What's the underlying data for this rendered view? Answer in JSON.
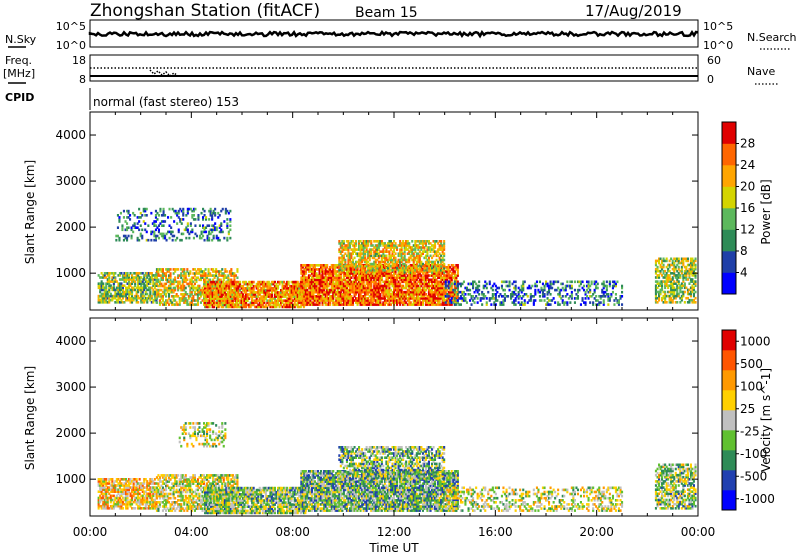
{
  "header": {
    "station": "Zhongshan Station (fitACF)",
    "beam": "Beam 15",
    "date": "17/Aug/2019"
  },
  "top_panels": {
    "nsky_label": "N.Sky",
    "nsky_ticks": [
      "10^5",
      "10^0"
    ],
    "nsearch_label": "N.Search",
    "nsearch_ticks": [
      "10^5",
      "10^0"
    ],
    "freq_label": "Freq.",
    "freq_unit": "[MHz]",
    "freq_ticks": [
      "18",
      "8"
    ],
    "nave_label": "Nave",
    "nave_ticks": [
      "60",
      "0"
    ],
    "cpid_label": "CPID",
    "cpid_text": "normal (fast stereo) 153"
  },
  "colors": {
    "power_scale": [
      "#0000ff",
      "#1f3fa8",
      "#2e8b57",
      "#5cb85c",
      "#d4d400",
      "#ffa500",
      "#ff6600",
      "#e00000"
    ],
    "velocity_scale": [
      "#0000ff",
      "#2040b0",
      "#2e8b57",
      "#60c030",
      "#c0c0c0",
      "#ffd000",
      "#ff9900",
      "#ff5500",
      "#e00000"
    ]
  },
  "chart_data": [
    {
      "type": "heatmap",
      "ylabel": "Slant Range [km]",
      "yticks": [
        "1000",
        "2000",
        "3000",
        "4000"
      ],
      "ylim": [
        200,
        4500
      ],
      "colorbar_label": "Power [dB]",
      "colorbar_ticks": [
        "4",
        "8",
        "12",
        "16",
        "20",
        "24",
        "28"
      ],
      "crange": [
        0,
        30
      ],
      "regions": [
        {
          "t": [
            0.3,
            2.6
          ],
          "r": [
            350,
            1000
          ],
          "value": 14,
          "density": 0.7
        },
        {
          "t": [
            2.6,
            5.8
          ],
          "r": [
            300,
            1100
          ],
          "value": 18,
          "density": 0.6
        },
        {
          "t": [
            1.0,
            5.5
          ],
          "r": [
            1700,
            2400
          ],
          "value": 8,
          "density": 0.25
        },
        {
          "t": [
            4.5,
            8.5
          ],
          "r": [
            250,
            800
          ],
          "value": 22,
          "density": 0.8
        },
        {
          "t": [
            8.3,
            14.5
          ],
          "r": [
            300,
            1200
          ],
          "value": 24,
          "density": 0.85
        },
        {
          "t": [
            9.8,
            14.0
          ],
          "r": [
            1000,
            1700
          ],
          "value": 18,
          "density": 0.6
        },
        {
          "t": [
            14.0,
            21.0
          ],
          "r": [
            300,
            800
          ],
          "value": 8,
          "density": 0.35
        },
        {
          "t": [
            22.3,
            23.9
          ],
          "r": [
            350,
            1300
          ],
          "value": 15,
          "density": 0.6
        }
      ]
    },
    {
      "type": "heatmap",
      "xlabel": "Time UT",
      "xticks": [
        "00:00",
        "04:00",
        "08:00",
        "12:00",
        "16:00",
        "20:00",
        "00:00"
      ],
      "xlim": [
        0,
        24
      ],
      "ylabel": "Slant Range [km]",
      "yticks": [
        "1000",
        "2000",
        "3000",
        "4000"
      ],
      "ylim": [
        200,
        4500
      ],
      "colorbar_label": "Velocity [m s^-1]",
      "colorbar_ticks": [
        "1000",
        "500",
        "100",
        "25",
        "-25",
        "-100",
        "-500",
        "-1000"
      ],
      "crange": [
        -1200,
        1200
      ],
      "regions": [
        {
          "t": [
            0.3,
            2.6
          ],
          "r": [
            350,
            1000
          ],
          "value": 300,
          "density": 0.7
        },
        {
          "t": [
            2.6,
            5.8
          ],
          "r": [
            300,
            1100
          ],
          "value": 80,
          "density": 0.6
        },
        {
          "t": [
            3.5,
            5.3
          ],
          "r": [
            1700,
            2200
          ],
          "value": 0,
          "density": 0.3
        },
        {
          "t": [
            4.5,
            8.5
          ],
          "r": [
            250,
            800
          ],
          "value": -200,
          "density": 0.8
        },
        {
          "t": [
            8.3,
            14.5
          ],
          "r": [
            300,
            1200
          ],
          "value": -300,
          "density": 0.85
        },
        {
          "t": [
            9.8,
            14.0
          ],
          "r": [
            1000,
            1700
          ],
          "value": -250,
          "density": 0.6
        },
        {
          "t": [
            14.0,
            21.0
          ],
          "r": [
            300,
            800
          ],
          "value": 60,
          "density": 0.35
        },
        {
          "t": [
            22.3,
            23.9
          ],
          "r": [
            350,
            1300
          ],
          "value": -150,
          "density": 0.6
        }
      ]
    }
  ]
}
